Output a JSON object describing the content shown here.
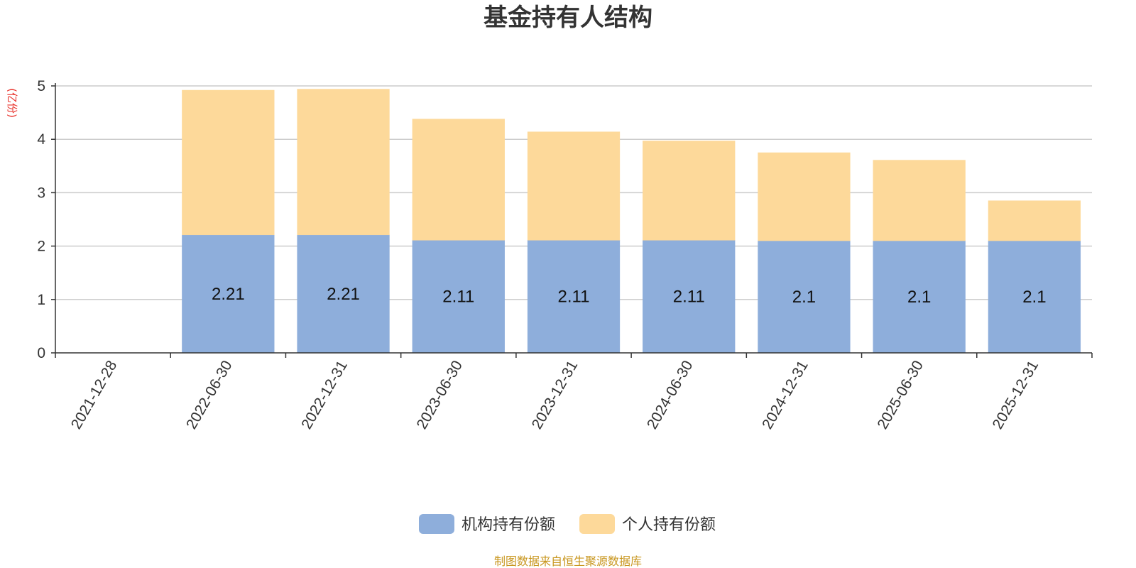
{
  "chart_data": {
    "type": "bar",
    "stacked": true,
    "title": "基金持有人结构",
    "unit_label": "(亿份)",
    "categories": [
      "2021-12-28",
      "2022-06-30",
      "2022-12-31",
      "2023-06-30",
      "2023-12-31",
      "2024-06-30",
      "2024-12-31",
      "2025-06-30",
      "2025-12-31"
    ],
    "series": [
      {
        "name": "机构持有份额",
        "color": "#8eaedb",
        "values": [
          0,
          2.21,
          2.21,
          2.11,
          2.11,
          2.11,
          2.1,
          2.1,
          2.1
        ],
        "labels": [
          "",
          "2.21",
          "2.21",
          "2.11",
          "2.11",
          "2.11",
          "2.1",
          "2.1",
          "2.1"
        ]
      },
      {
        "name": "个人持有份额",
        "color": "#fdd99a",
        "values": [
          0,
          2.71,
          2.73,
          2.27,
          2.03,
          1.86,
          1.65,
          1.51,
          0.75
        ]
      }
    ],
    "ylim": [
      0,
      5
    ],
    "yticks": [
      0,
      1,
      2,
      3,
      4,
      5
    ],
    "grid": true,
    "legend_position": "bottom-center",
    "source_text": "制图数据来自恒生聚源数据库"
  }
}
